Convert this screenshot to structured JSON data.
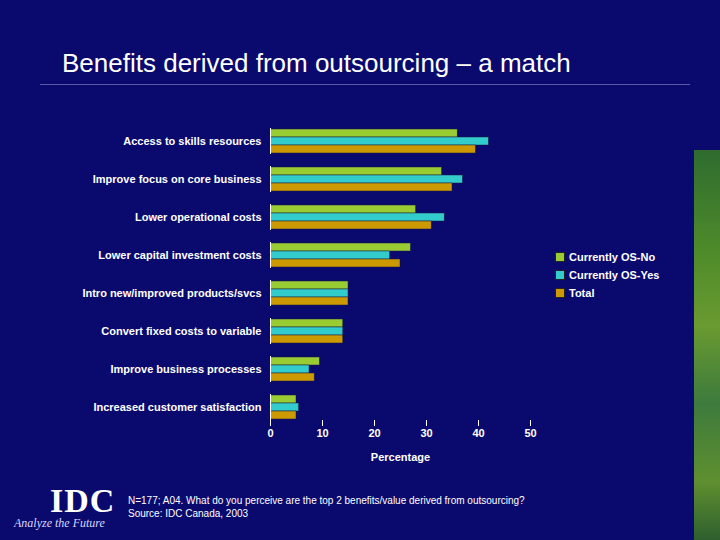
{
  "chart_data": {
    "type": "bar",
    "orientation": "horizontal",
    "title": "Benefits derived from outsourcing – a match",
    "categories": [
      "Access to skills resources",
      "Improve focus on core business",
      "Lower operational costs",
      "Lower capital investment costs",
      "Intro new/improved products/svcs",
      "Convert fixed costs to variable",
      "Improve business processes",
      "Increased customer satisfaction"
    ],
    "series": [
      {
        "name": "Currently OS-No",
        "color": "#99cc33",
        "values": [
          36,
          33,
          28,
          27,
          15,
          14,
          9.5,
          5
        ]
      },
      {
        "name": "Currently OS-Yes",
        "color": "#33cccc",
        "values": [
          42,
          37,
          33.5,
          23,
          15,
          14,
          7.5,
          5.5
        ]
      },
      {
        "name": "Total",
        "color": "#cc9900",
        "values": [
          39.5,
          35,
          31,
          25,
          15,
          14,
          8.5,
          5
        ]
      }
    ],
    "xlabel": "Percentage",
    "xlim": [
      0,
      50
    ],
    "xticks": [
      0,
      10,
      20,
      30,
      40,
      50
    ],
    "legend": "right",
    "annotations": [
      "N=177; A04. What do you perceive are the top 2 benefits/value derived from outsourcing?",
      "Source: IDC Canada, 2003"
    ],
    "logo": {
      "name": "IDC",
      "tagline": "Analyze the Future"
    }
  }
}
